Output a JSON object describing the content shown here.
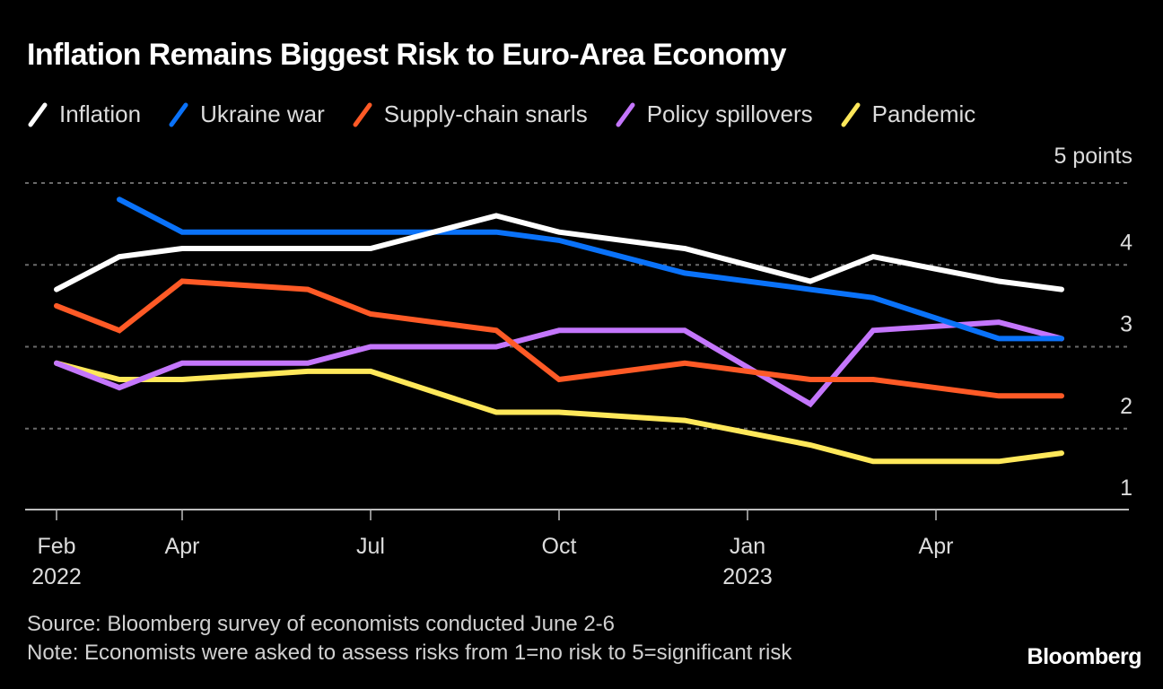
{
  "chart_data": {
    "type": "line",
    "title": "Inflation Remains Biggest Risk to Euro-Area Economy",
    "unit_label": "5 points",
    "xlabel": "",
    "ylabel": "",
    "ylim": [
      1,
      5
    ],
    "yticks": [
      1,
      2,
      3,
      4,
      5
    ],
    "ytick_labels": [
      "1",
      "2",
      "3",
      "4",
      ""
    ],
    "grid": true,
    "legend_position": "top-left",
    "x_dates": [
      "2022-02",
      "2022-03",
      "2022-04",
      "2022-06",
      "2022-07",
      "2022-09",
      "2022-10",
      "2022-12",
      "2023-02",
      "2023-03",
      "2023-05",
      "2023-06"
    ],
    "xticks": [
      {
        "date": "2022-02",
        "label": "Feb",
        "sublabel": "2022"
      },
      {
        "date": "2022-04",
        "label": "Apr",
        "sublabel": ""
      },
      {
        "date": "2022-07",
        "label": "Jul",
        "sublabel": ""
      },
      {
        "date": "2022-10",
        "label": "Oct",
        "sublabel": ""
      },
      {
        "date": "2023-01",
        "label": "Jan",
        "sublabel": "2023"
      },
      {
        "date": "2023-04",
        "label": "Apr",
        "sublabel": ""
      }
    ],
    "series": [
      {
        "name": "Inflation",
        "color": "#ffffff",
        "values": [
          3.7,
          4.1,
          4.2,
          4.2,
          4.2,
          4.6,
          4.4,
          4.2,
          3.8,
          4.1,
          3.8,
          3.7
        ]
      },
      {
        "name": "Ukraine war",
        "color": "#0a72f9",
        "values": [
          null,
          4.8,
          4.4,
          4.4,
          4.4,
          4.4,
          4.3,
          3.9,
          3.7,
          3.6,
          3.1,
          3.1
        ]
      },
      {
        "name": "Supply-chain snarls",
        "color": "#ff5a26",
        "values": [
          3.5,
          3.2,
          3.8,
          3.7,
          3.4,
          3.2,
          2.6,
          2.8,
          2.6,
          2.6,
          2.4,
          2.4
        ]
      },
      {
        "name": "Policy spillovers",
        "color": "#c476fc",
        "values": [
          2.8,
          2.5,
          2.8,
          2.8,
          3.0,
          3.0,
          3.2,
          3.2,
          2.3,
          3.2,
          3.3,
          3.1
        ]
      },
      {
        "name": "Pandemic",
        "color": "#ffe85a",
        "values": [
          2.8,
          2.6,
          2.6,
          2.7,
          2.7,
          2.2,
          2.2,
          2.1,
          1.8,
          1.6,
          1.6,
          1.7
        ]
      }
    ]
  },
  "footer": {
    "source": "Source: Bloomberg survey of economists conducted June 2-6",
    "note": "Note: Economists were asked to assess risks from 1=no risk to 5=significant risk"
  },
  "brand": "Bloomberg"
}
